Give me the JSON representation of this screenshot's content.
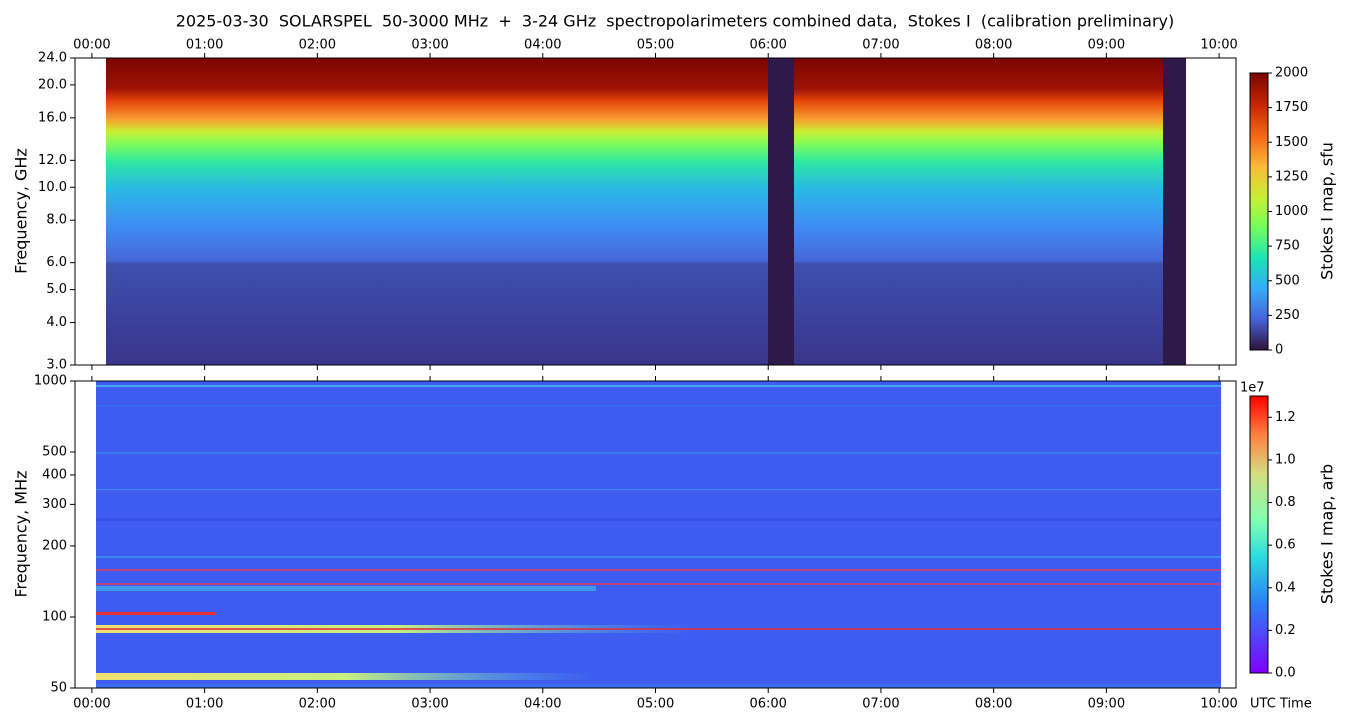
{
  "chart_data": [
    {
      "type": "heatmap",
      "title": "2025-03-30  SOLARSPEL  50-3000 MHz  +  3-24 GHz  spectropolarimeters combined data,  Stokes I  (calibration preliminary)",
      "ylabel": "Frequency, GHz",
      "log_y": true,
      "xlim": [
        -0.15,
        10.15
      ],
      "xticks": [
        {
          "value": 0,
          "label": "00:00"
        },
        {
          "value": 1,
          "label": "01:00"
        },
        {
          "value": 2,
          "label": "02:00"
        },
        {
          "value": 3,
          "label": "03:00"
        },
        {
          "value": 4,
          "label": "04:00"
        },
        {
          "value": 5,
          "label": "05:00"
        },
        {
          "value": 6,
          "label": "06:00"
        },
        {
          "value": 7,
          "label": "07:00"
        },
        {
          "value": 8,
          "label": "08:00"
        },
        {
          "value": 9,
          "label": "09:00"
        },
        {
          "value": 10,
          "label": "10:00"
        }
      ],
      "ylim": [
        3,
        24
      ],
      "yticks": [
        {
          "value": 3,
          "label": "3.0"
        },
        {
          "value": 4,
          "label": "4.0"
        },
        {
          "value": 5,
          "label": "5.0"
        },
        {
          "value": 6,
          "label": "6.0"
        },
        {
          "value": 8,
          "label": "8.0"
        },
        {
          "value": 10,
          "label": "10.0"
        },
        {
          "value": 12,
          "label": "12.0"
        },
        {
          "value": 16,
          "label": "16.0"
        },
        {
          "value": 20,
          "label": "20.0"
        },
        {
          "value": 24,
          "label": "24.0"
        }
      ],
      "colorbar": {
        "label": "Stokes I map, sfu",
        "lim": [
          0,
          2000
        ],
        "ticks": [
          0,
          250,
          500,
          750,
          1000,
          1250,
          1500,
          1750,
          2000
        ]
      }
    },
    {
      "type": "heatmap",
      "ylabel": "Frequency, MHz",
      "xlabel": "UTC Time",
      "log_y": true,
      "xlim": [
        -0.15,
        10.15
      ],
      "xticks": [
        {
          "value": 0,
          "label": "00:00"
        },
        {
          "value": 1,
          "label": "01:00"
        },
        {
          "value": 2,
          "label": "02:00"
        },
        {
          "value": 3,
          "label": "03:00"
        },
        {
          "value": 4,
          "label": "04:00"
        },
        {
          "value": 5,
          "label": "05:00"
        },
        {
          "value": 6,
          "label": "06:00"
        },
        {
          "value": 7,
          "label": "07:00"
        },
        {
          "value": 8,
          "label": "08:00"
        },
        {
          "value": 9,
          "label": "09:00"
        },
        {
          "value": 10,
          "label": "10:00"
        }
      ],
      "ylim": [
        50,
        1000
      ],
      "yticks": [
        50,
        100,
        200,
        300,
        400,
        500,
        1000
      ],
      "colorbar": {
        "label": "Stokes I map, arb",
        "lim": [
          0,
          13000000
        ],
        "offset_text": "1e7",
        "ticks": [
          {
            "value": 0,
            "label": "0.0"
          },
          {
            "value": 2000000,
            "label": "0.2"
          },
          {
            "value": 4000000,
            "label": "0.4"
          },
          {
            "value": 6000000,
            "label": "0.6"
          },
          {
            "value": 8000000,
            "label": "0.8"
          },
          {
            "value": 10000000,
            "label": "1.0"
          },
          {
            "value": 12000000,
            "label": "1.2"
          }
        ]
      }
    }
  ]
}
